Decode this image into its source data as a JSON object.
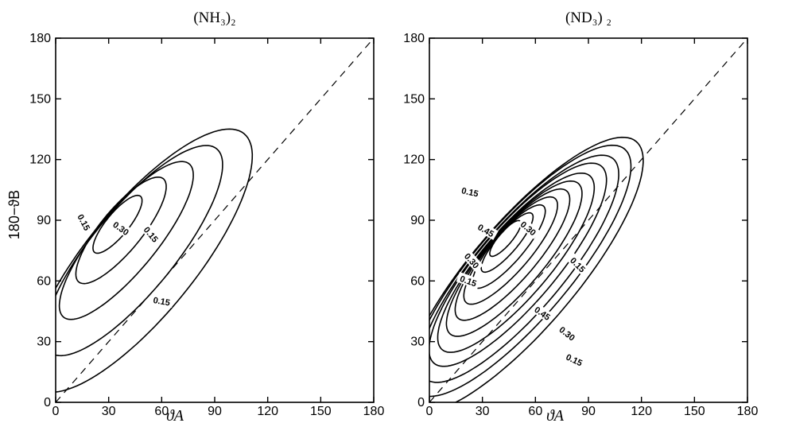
{
  "chart_data": [
    {
      "type": "contour",
      "title": "(NH₃)₂",
      "xlabel": "ϑA",
      "ylabel": "180−ϑB",
      "xlim": [
        0,
        180
      ],
      "ylim": [
        0,
        180
      ],
      "xticks": [
        "0",
        "30",
        "60",
        "90",
        "120",
        "150",
        "180"
      ],
      "yticks": [
        "0",
        "30",
        "60",
        "90",
        "120",
        "150",
        "180"
      ],
      "diagonal": "dashed",
      "contour_levels": 5,
      "contours": [
        {
          "center": [
            48,
            70
          ],
          "ry": 86,
          "rx": 29,
          "angle": -44
        },
        {
          "center": [
            44,
            75
          ],
          "ry": 69,
          "rx": 22,
          "angle": -44
        },
        {
          "center": [
            40,
            80
          ],
          "ry": 52,
          "rx": 16,
          "angle": -44
        },
        {
          "center": [
            37,
            85
          ],
          "ry": 35,
          "rx": 11,
          "angle": -44
        },
        {
          "center": [
            35,
            88
          ],
          "ry": 19,
          "rx": 6,
          "angle": -44
        }
      ],
      "labels": [
        {
          "text": "0.30",
          "x": 37,
          "y": 86,
          "rotate": 35
        },
        {
          "text": "0.15",
          "x": 54,
          "y": 83,
          "rotate": 50
        },
        {
          "text": "0.15",
          "x": 16,
          "y": 89,
          "rotate": 62
        },
        {
          "text": "0.15",
          "x": 60,
          "y": 50,
          "rotate": 10
        }
      ]
    },
    {
      "type": "contour",
      "title": "(ND₃) ₂",
      "xlabel": "ϑA",
      "ylabel": "",
      "xlim": [
        0,
        180
      ],
      "ylim": [
        0,
        180
      ],
      "xticks": [
        "0",
        "30",
        "60",
        "90",
        "120",
        "150",
        "180"
      ],
      "yticks": [
        "0",
        "30",
        "60",
        "90",
        "120",
        "150",
        "180"
      ],
      "diagonal": "dashed",
      "contour_levels": 11,
      "contours": [
        {
          "center": [
            53,
            63
          ],
          "ry": 92,
          "rx": 28,
          "angle": -45
        },
        {
          "center": [
            52,
            65
          ],
          "ry": 84,
          "rx": 25.5,
          "angle": -45
        },
        {
          "center": [
            51,
            66
          ],
          "ry": 76,
          "rx": 23,
          "angle": -45
        },
        {
          "center": [
            50,
            68
          ],
          "ry": 68,
          "rx": 20.5,
          "angle": -45
        },
        {
          "center": [
            49,
            69
          ],
          "ry": 60,
          "rx": 18,
          "angle": -45
        },
        {
          "center": [
            48,
            71
          ],
          "ry": 52,
          "rx": 15.5,
          "angle": -45
        },
        {
          "center": [
            47,
            73
          ],
          "ry": 44,
          "rx": 13,
          "angle": -45
        },
        {
          "center": [
            46,
            75
          ],
          "ry": 36,
          "rx": 10.5,
          "angle": -45
        },
        {
          "center": [
            45,
            77
          ],
          "ry": 28,
          "rx": 8,
          "angle": -45
        },
        {
          "center": [
            44,
            79
          ],
          "ry": 20,
          "rx": 5.5,
          "angle": -45
        },
        {
          "center": [
            43,
            81
          ],
          "ry": 12,
          "rx": 3.5,
          "angle": -45
        }
      ],
      "labels": [
        {
          "text": "0.15",
          "x": 23,
          "y": 104,
          "rotate": 12
        },
        {
          "text": "0.45",
          "x": 32,
          "y": 85,
          "rotate": 30
        },
        {
          "text": "0.30",
          "x": 56,
          "y": 86,
          "rotate": 40
        },
        {
          "text": "0.30",
          "x": 24,
          "y": 70,
          "rotate": 48
        },
        {
          "text": "0.15",
          "x": 22,
          "y": 60,
          "rotate": 20
        },
        {
          "text": "0.15",
          "x": 84,
          "y": 68,
          "rotate": 45
        },
        {
          "text": "0.45",
          "x": 64,
          "y": 44,
          "rotate": 35
        },
        {
          "text": "0.30",
          "x": 78,
          "y": 34,
          "rotate": 38
        },
        {
          "text": "0.15",
          "x": 82,
          "y": 21,
          "rotate": 25
        }
      ]
    }
  ]
}
